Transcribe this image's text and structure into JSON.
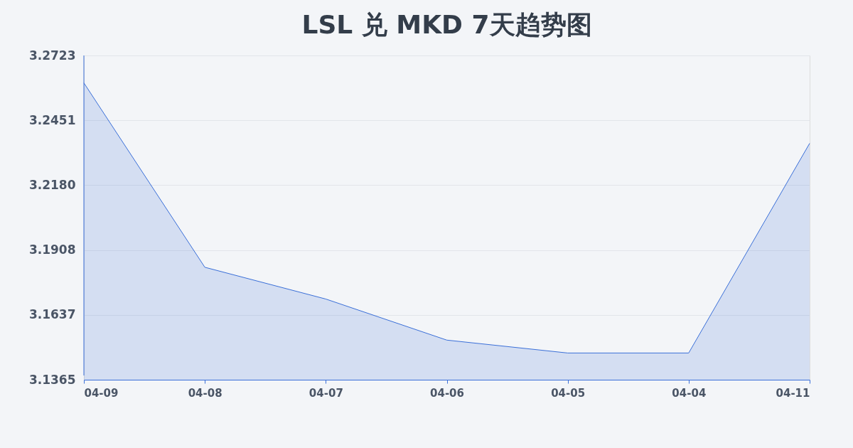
{
  "chart_data": {
    "type": "area",
    "title": "LSL 兑 MKD 7天趋势图",
    "categories": [
      "04-09",
      "04-08",
      "04-07",
      "04-06",
      "04-05",
      "04-04",
      "04-11"
    ],
    "series": [
      {
        "color": "#3a6fd8",
        "values": [
          3.2608,
          3.1836,
          3.1703,
          3.1531,
          3.1477,
          3.1477,
          3.2355
        ]
      }
    ],
    "ylim": [
      3.1365,
      3.2723
    ],
    "yticks": [
      3.1365,
      3.1637,
      3.1908,
      {
        "value": 3.218,
        "label": "3.2180"
      },
      3.2451,
      3.2723
    ],
    "grid": "y"
  }
}
